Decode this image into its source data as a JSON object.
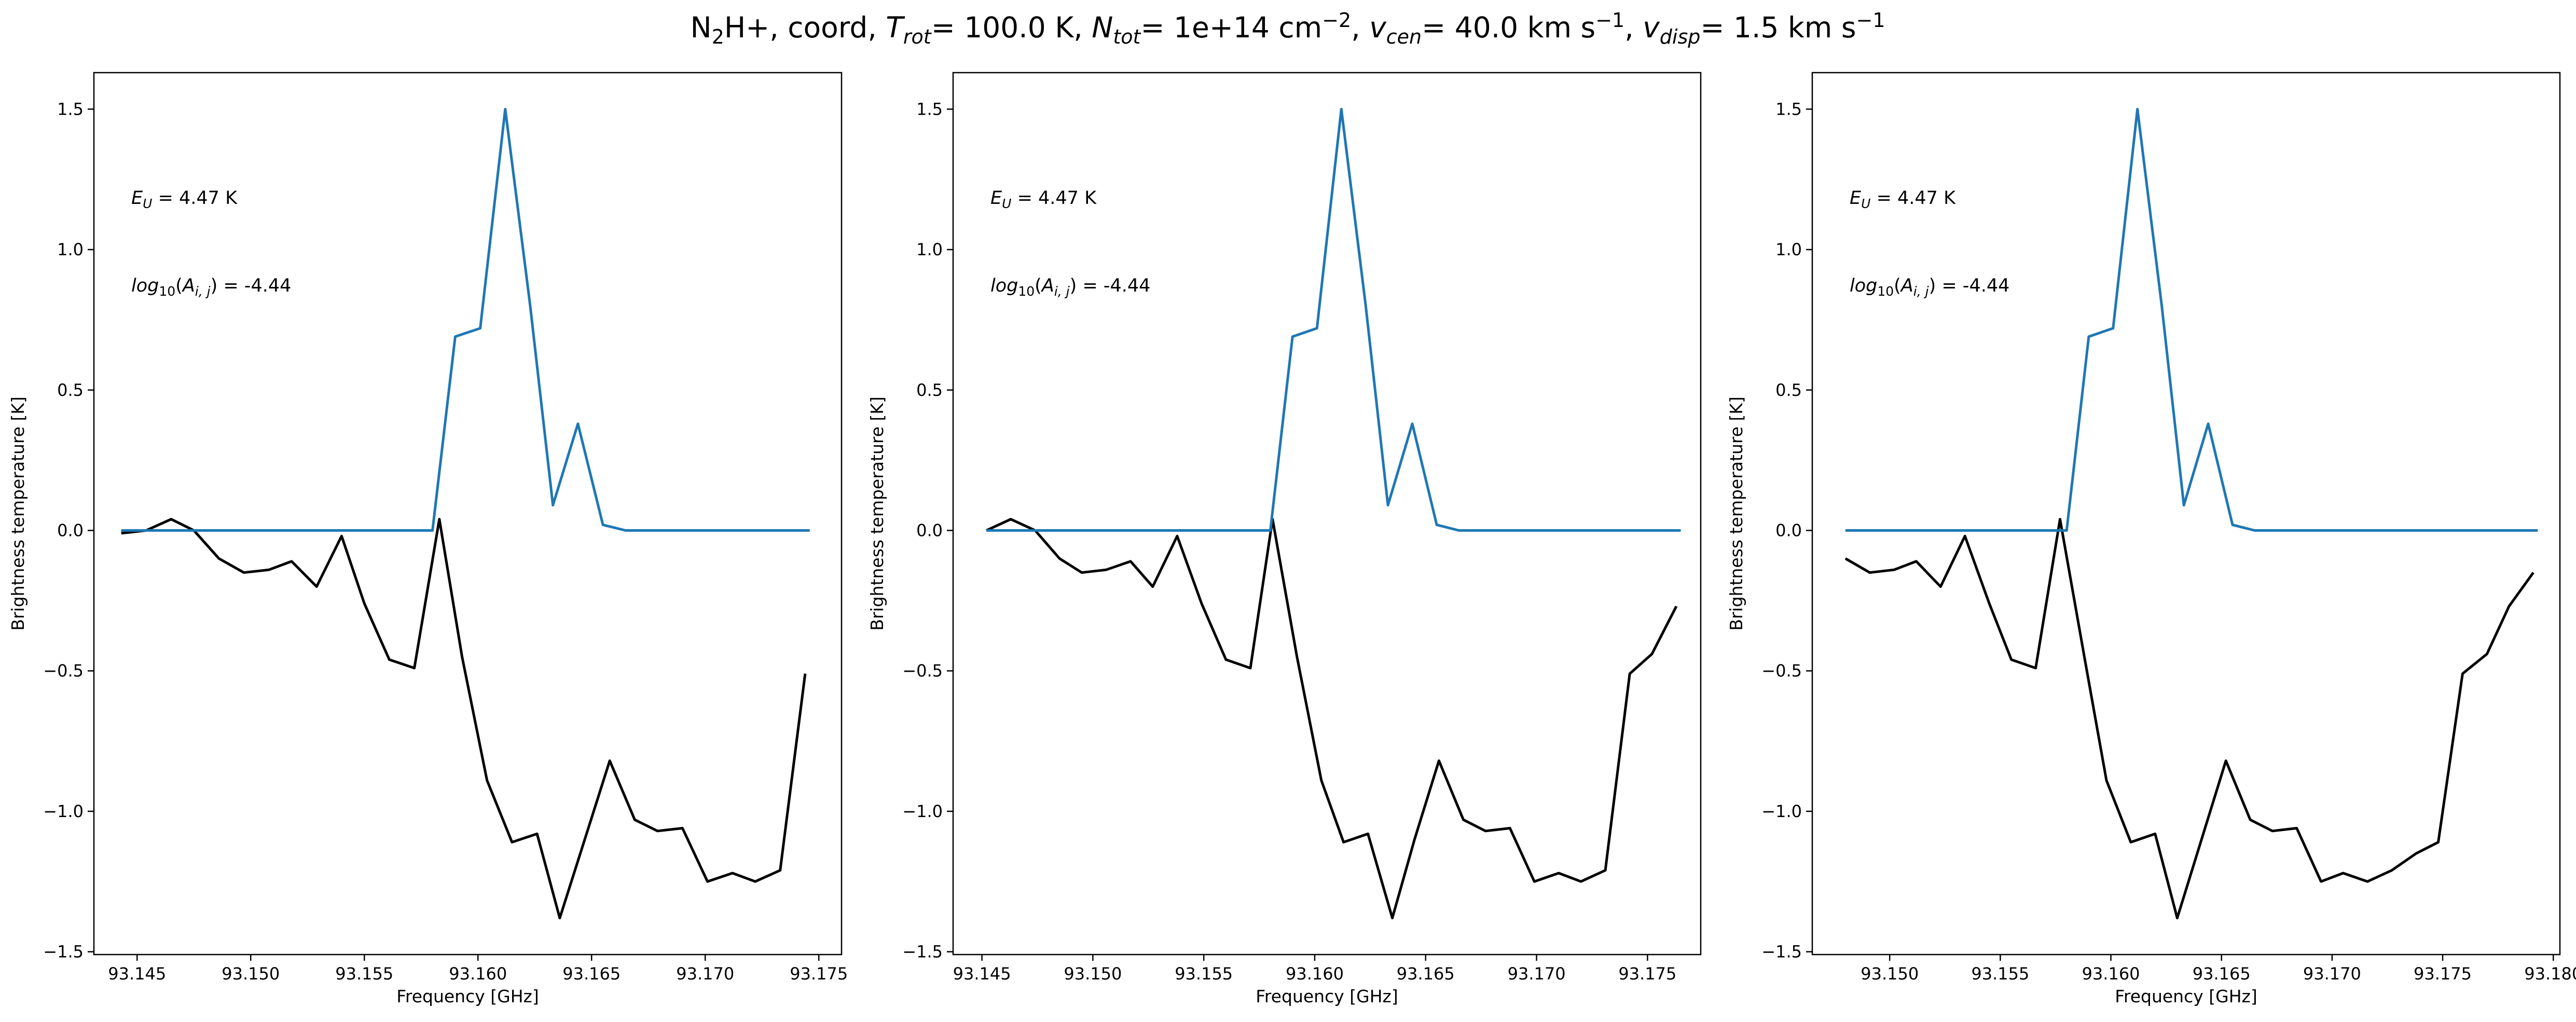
{
  "title": {
    "prefix": "N",
    "prefix_sub": "2",
    "species_rest": "H+, coord, ",
    "trot_var": "T",
    "trot_sub": "rot",
    "trot_val": "= 100.0 K, ",
    "ntot_var": "N",
    "ntot_sub": "tot",
    "ntot_val": "= 1e+14 cm",
    "ntot_exp": "−2",
    "vcen_var": "v",
    "vcen_sub": "cen",
    "vcen_val": "= 40.0 km s",
    "vcen_exp": "−1",
    "vdisp_var": "v",
    "vdisp_sub": "disp",
    "vdisp_val": "= 1.5 km s",
    "vdisp_exp": "−1",
    "sep": ", "
  },
  "annotations": {
    "eu_var": "E",
    "eu_sub": "U",
    "eu_val": " = 4.47 K",
    "log_fn": "log",
    "log_sub": "10",
    "log_paren_open": "(",
    "log_var": "A",
    "log_var_sub": "i, j",
    "log_paren_close": ")",
    "log_val": " = -4.44"
  },
  "colors": {
    "model_line": "#1f77b4",
    "observed_line": "#000000",
    "axes": "#000000",
    "background": "#ffffff"
  },
  "chart_data": [
    {
      "type": "line",
      "xlabel": "Frequency [GHz]",
      "ylabel": "Brightness temperature [K]",
      "xlim": [
        93.1431,
        93.176
      ],
      "ylim": [
        -1.51,
        1.63
      ],
      "xticks": [
        93.145,
        93.15,
        93.155,
        93.16,
        93.165,
        93.17,
        93.175
      ],
      "xtick_labels": [
        "93.145",
        "93.150",
        "93.155",
        "93.160",
        "93.165",
        "93.170",
        "93.175"
      ],
      "yticks": [
        -1.5,
        -1.0,
        -0.5,
        0.0,
        0.5,
        1.0,
        1.5
      ],
      "ytick_labels": [
        "−1.5",
        "−1.0",
        "−0.5",
        "0.0",
        "0.5",
        "1.0",
        "1.5"
      ],
      "series": [
        {
          "role": "observed",
          "color": "#000000",
          "x": [
            93.1443,
            93.1454,
            93.1465,
            93.1475,
            93.1486,
            93.1497,
            93.1508,
            93.1518,
            93.1529,
            93.154,
            93.155,
            93.1561,
            93.1572,
            93.1583,
            93.1593,
            93.1604,
            93.1615,
            93.1626,
            93.1636,
            93.1647,
            93.1658,
            93.1669,
            93.1679,
            93.169,
            93.1701,
            93.1712,
            93.1722,
            93.1733,
            93.1744
          ],
          "y": [
            -0.01,
            0.0,
            0.04,
            0.0,
            -0.1,
            -0.15,
            -0.14,
            -0.11,
            -0.2,
            -0.02,
            -0.26,
            -0.46,
            -0.49,
            0.04,
            -0.45,
            -0.89,
            -1.11,
            -1.08,
            -1.38,
            -1.1,
            -0.82,
            -1.03,
            -1.07,
            -1.06,
            -1.25,
            -1.22,
            -1.25,
            -1.21,
            -0.51
          ]
        },
        {
          "role": "model",
          "color": "#1f77b4",
          "x": [
            93.1443,
            93.158,
            93.159,
            93.1601,
            93.1612,
            93.1623,
            93.1633,
            93.1644,
            93.1655,
            93.1665,
            93.1746
          ],
          "y": [
            0.0,
            0.0,
            0.69,
            0.72,
            1.5,
            0.8,
            0.09,
            0.38,
            0.02,
            0.0,
            0.0
          ]
        }
      ]
    },
    {
      "type": "line",
      "xlabel": "Frequency [GHz]",
      "ylabel": "Brightness temperature [K]",
      "xlim": [
        93.1437,
        93.1774
      ],
      "ylim": [
        -1.51,
        1.63
      ],
      "xticks": [
        93.145,
        93.15,
        93.155,
        93.16,
        93.165,
        93.17,
        93.175
      ],
      "xtick_labels": [
        "93.145",
        "93.150",
        "93.155",
        "93.160",
        "93.165",
        "93.170",
        "93.175"
      ],
      "yticks": [
        -1.5,
        -1.0,
        -0.5,
        0.0,
        0.5,
        1.0,
        1.5
      ],
      "ytick_labels": [
        "−1.5",
        "−1.0",
        "−0.5",
        "0.0",
        "0.5",
        "1.0",
        "1.5"
      ],
      "series": [
        {
          "role": "observed",
          "color": "#000000",
          "x": [
            93.1452,
            93.1463,
            93.1474,
            93.1485,
            93.1495,
            93.1506,
            93.1517,
            93.1527,
            93.1538,
            93.1549,
            93.156,
            93.1571,
            93.1581,
            93.1592,
            93.1603,
            93.1613,
            93.1624,
            93.1635,
            93.1645,
            93.1656,
            93.1667,
            93.1677,
            93.1688,
            93.1699,
            93.171,
            93.172,
            93.1731,
            93.1742,
            93.1752,
            93.1763
          ],
          "y": [
            0.0,
            0.04,
            0.0,
            -0.1,
            -0.15,
            -0.14,
            -0.11,
            -0.2,
            -0.02,
            -0.26,
            -0.46,
            -0.49,
            0.04,
            -0.45,
            -0.89,
            -1.11,
            -1.08,
            -1.38,
            -1.1,
            -0.82,
            -1.03,
            -1.07,
            -1.06,
            -1.25,
            -1.22,
            -1.25,
            -1.21,
            -0.51,
            -0.44,
            -0.27
          ]
        },
        {
          "role": "model",
          "color": "#1f77b4",
          "x": [
            93.1452,
            93.158,
            93.159,
            93.1601,
            93.1612,
            93.1623,
            93.1633,
            93.1644,
            93.1655,
            93.1665,
            93.1765
          ],
          "y": [
            0.0,
            0.0,
            0.69,
            0.72,
            1.5,
            0.8,
            0.09,
            0.38,
            0.02,
            0.0,
            0.0
          ]
        }
      ]
    },
    {
      "type": "line",
      "xlabel": "Frequency [GHz]",
      "ylabel": "Brightness temperature [K]",
      "xlim": [
        93.1465,
        93.1803
      ],
      "ylim": [
        -1.51,
        1.63
      ],
      "xticks": [
        93.15,
        93.155,
        93.16,
        93.165,
        93.17,
        93.175,
        93.18
      ],
      "xtick_labels": [
        "93.150",
        "93.155",
        "93.160",
        "93.165",
        "93.170",
        "93.175",
        "93.180"
      ],
      "yticks": [
        -1.5,
        -1.0,
        -0.5,
        0.0,
        0.5,
        1.0,
        1.5
      ],
      "ytick_labels": [
        "−1.5",
        "−1.0",
        "−0.5",
        "0.0",
        "0.5",
        "1.0",
        "1.5"
      ],
      "series": [
        {
          "role": "observed",
          "color": "#000000",
          "x": [
            93.148,
            93.1491,
            93.1502,
            93.1512,
            93.1523,
            93.1534,
            93.1545,
            93.1555,
            93.1566,
            93.1577,
            93.1588,
            93.1598,
            93.1609,
            93.162,
            93.163,
            93.1641,
            93.1652,
            93.1663,
            93.1673,
            93.1684,
            93.1695,
            93.1705,
            93.1716,
            93.1727,
            93.1738,
            93.1748,
            93.1759,
            93.177,
            93.178,
            93.1791
          ],
          "y": [
            -0.1,
            -0.15,
            -0.14,
            -0.11,
            -0.2,
            -0.02,
            -0.26,
            -0.46,
            -0.49,
            0.04,
            -0.45,
            -0.89,
            -1.11,
            -1.08,
            -1.38,
            -1.1,
            -0.82,
            -1.03,
            -1.07,
            -1.06,
            -1.25,
            -1.22,
            -1.25,
            -1.21,
            -1.15,
            -1.11,
            -0.51,
            -0.44,
            -0.27,
            -0.15
          ]
        },
        {
          "role": "model",
          "color": "#1f77b4",
          "x": [
            93.148,
            93.158,
            93.159,
            93.1601,
            93.1612,
            93.1623,
            93.1633,
            93.1644,
            93.1655,
            93.1665,
            93.1793
          ],
          "y": [
            0.0,
            0.0,
            0.69,
            0.72,
            1.5,
            0.8,
            0.09,
            0.38,
            0.02,
            0.0,
            0.0
          ]
        }
      ]
    }
  ]
}
